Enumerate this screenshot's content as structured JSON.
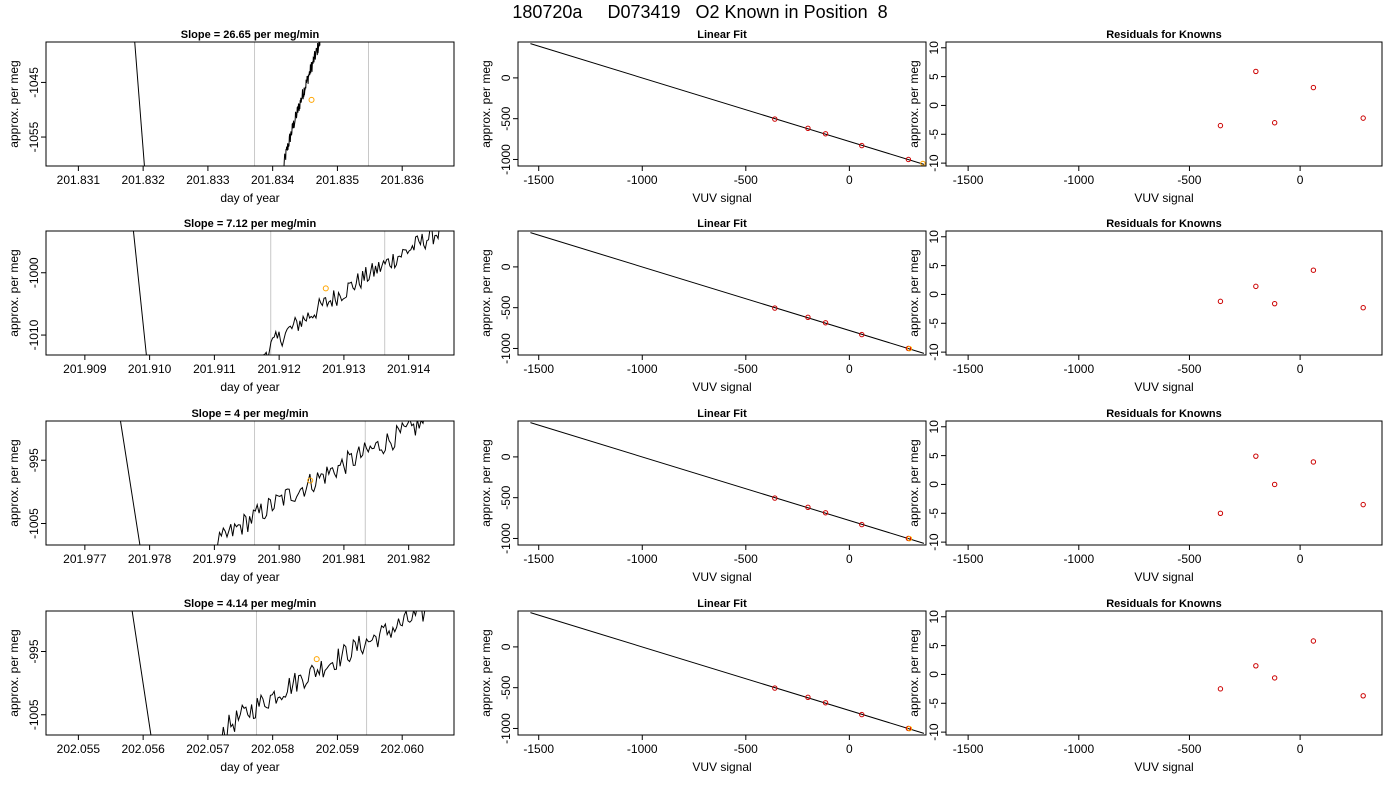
{
  "page": {
    "title": "180720a     D073419   O2 Known in Position  8"
  },
  "chart_data": [
    {
      "type": "line",
      "panel": "time",
      "title": "Slope =  26.65  per meg/min",
      "xlabel": "day of year",
      "ylabel": "approx. per meg",
      "xlim": [
        201.8305,
        201.8368
      ],
      "ylim": [
        -1060.3,
        -1037.6
      ],
      "xticks": [
        201.831,
        201.832,
        201.833,
        201.834,
        201.835,
        201.836
      ],
      "xtick_labels": [
        "201.831",
        "201.832",
        "201.833",
        "201.834",
        "201.835",
        "201.836"
      ],
      "yticks": [
        -1045,
        -1055
      ],
      "ytick_labels": [
        "-1045",
        "-1055"
      ],
      "vlines": [
        201.83372,
        201.83548
      ],
      "descent": [
        [
          201.83187,
          -1037.6
        ],
        [
          201.83202,
          -1060.3
        ]
      ],
      "rise_start": 201.83417,
      "rise_end": 201.83473,
      "rise_y0": -1060.3,
      "rise_y1": -1037.6,
      "noise": 1.2,
      "marker": {
        "x": 201.8346,
        "y": -1048.2,
        "color": "#ffa500"
      }
    },
    {
      "type": "line",
      "panel": "fit",
      "title": "Linear Fit",
      "xlabel": "VUV signal",
      "ylabel": "approx. per meg",
      "xlim": [
        -1600,
        370
      ],
      "ylim": [
        -1080,
        440
      ],
      "xticks": [
        -1500,
        -1000,
        -500,
        0
      ],
      "xtick_labels": [
        "-1500",
        "-1000",
        "-500",
        "0"
      ],
      "yticks": [
        0,
        -500,
        -1000
      ],
      "ytick_labels": [
        "0",
        "-500",
        "-1000"
      ],
      "line": [
        [
          -1540,
          420
        ],
        [
          360,
          -1060
        ]
      ],
      "points": [
        {
          "x": -360,
          "y": -505
        },
        {
          "x": -200,
          "y": -618
        },
        {
          "x": -115,
          "y": -685
        },
        {
          "x": 60,
          "y": -830
        },
        {
          "x": 285,
          "y": -1000
        }
      ],
      "point_color": "#cc0000",
      "extra": [
        {
          "x": 355,
          "y": -1048,
          "color": "#ffa500"
        }
      ]
    },
    {
      "type": "scatter",
      "panel": "resid",
      "title": "Residuals for Knowns",
      "xlabel": "VUV signal",
      "ylabel": "approx. per meg",
      "xlim": [
        -1600,
        370
      ],
      "ylim": [
        -10.5,
        11
      ],
      "xticks": [
        -1500,
        -1000,
        -500,
        0
      ],
      "xtick_labels": [
        "-1500",
        "-1000",
        "-500",
        "0"
      ],
      "yticks": [
        10,
        5,
        0,
        -5,
        -10
      ],
      "ytick_labels": [
        "10",
        "5",
        "0",
        "-5",
        "-10"
      ],
      "points": [
        {
          "x": -360,
          "y": -3.5
        },
        {
          "x": -200,
          "y": 5.9
        },
        {
          "x": -115,
          "y": -3.0
        },
        {
          "x": 60,
          "y": 3.1
        },
        {
          "x": 285,
          "y": -2.2
        }
      ],
      "point_color": "#cc0000"
    },
    {
      "type": "line",
      "panel": "time",
      "title": "Slope =  7.12  per meg/min",
      "xlabel": "day of year",
      "ylabel": "approx. per meg",
      "xlim": [
        201.9084,
        201.9147
      ],
      "ylim": [
        -1013.2,
        -993.3
      ],
      "xticks": [
        201.909,
        201.91,
        201.911,
        201.912,
        201.913,
        201.914
      ],
      "xtick_labels": [
        "201.909",
        "201.910",
        "201.911",
        "201.912",
        "201.913",
        "201.914"
      ],
      "yticks": [
        -1000,
        -1010
      ],
      "ytick_labels": [
        "-1000",
        "-1010"
      ],
      "vlines": [
        201.91187,
        201.91363
      ],
      "descent": [
        [
          201.90975,
          -993.3
        ],
        [
          201.90995,
          -1013.2
        ]
      ],
      "rise_start": 201.91175,
      "rise_end": 201.91448,
      "rise_y0": -1013.2,
      "rise_y1": -993.3,
      "noise": 1.6,
      "marker": {
        "x": 201.91272,
        "y": -1002.5,
        "color": "#ffa500"
      }
    },
    {
      "type": "line",
      "panel": "fit",
      "title": "Linear Fit",
      "xlabel": "VUV signal",
      "ylabel": "approx. per meg",
      "xlim": [
        -1600,
        370
      ],
      "ylim": [
        -1080,
        440
      ],
      "xticks": [
        -1500,
        -1000,
        -500,
        0
      ],
      "xtick_labels": [
        "-1500",
        "-1000",
        "-500",
        "0"
      ],
      "yticks": [
        0,
        -500,
        -1000
      ],
      "ytick_labels": [
        "0",
        "-500",
        "-1000"
      ],
      "line": [
        [
          -1540,
          420
        ],
        [
          360,
          -1060
        ]
      ],
      "points": [
        {
          "x": -360,
          "y": -505
        },
        {
          "x": -200,
          "y": -618
        },
        {
          "x": -115,
          "y": -685
        },
        {
          "x": 60,
          "y": -830
        },
        {
          "x": 285,
          "y": -1000
        }
      ],
      "point_color": "#cc0000",
      "extra": [
        {
          "x": 290,
          "y": -1002,
          "color": "#ffa500"
        }
      ]
    },
    {
      "type": "scatter",
      "panel": "resid",
      "title": "Residuals for Knowns",
      "xlabel": "VUV signal",
      "ylabel": "approx. per meg",
      "xlim": [
        -1600,
        370
      ],
      "ylim": [
        -10.5,
        11
      ],
      "xticks": [
        -1500,
        -1000,
        -500,
        0
      ],
      "xtick_labels": [
        "-1500",
        "-1000",
        "-500",
        "0"
      ],
      "yticks": [
        10,
        5,
        0,
        -5,
        -10
      ],
      "ytick_labels": [
        "10",
        "5",
        "0",
        "-5",
        "-10"
      ],
      "points": [
        {
          "x": -360,
          "y": -1.2
        },
        {
          "x": -200,
          "y": 1.4
        },
        {
          "x": -115,
          "y": -1.6
        },
        {
          "x": 60,
          "y": 4.2
        },
        {
          "x": 285,
          "y": -2.3
        }
      ],
      "point_color": "#cc0000"
    },
    {
      "type": "line",
      "panel": "time",
      "title": "Slope =  4  per meg/min",
      "xlabel": "day of year",
      "ylabel": "approx. per meg",
      "xlim": [
        201.9764,
        201.9827
      ],
      "ylim": [
        -1008.4,
        -988.8
      ],
      "xticks": [
        201.977,
        201.978,
        201.979,
        201.98,
        201.981,
        201.982
      ],
      "xtick_labels": [
        "201.977",
        "201.978",
        "201.979",
        "201.980",
        "201.981",
        "201.982"
      ],
      "yticks": [
        -995,
        -1005
      ],
      "ytick_labels": [
        "-995",
        "-1005"
      ],
      "vlines": [
        201.97962,
        201.98133
      ],
      "descent": [
        [
          201.97755,
          -988.8
        ],
        [
          201.97785,
          -1008.4
        ]
      ],
      "rise_start": 201.97905,
      "rise_end": 201.98225,
      "rise_y0": -1008.4,
      "rise_y1": -989.0,
      "noise": 1.8,
      "marker": {
        "x": 201.98048,
        "y": -998.2,
        "color": "#ffa500"
      }
    },
    {
      "type": "line",
      "panel": "fit",
      "title": "Linear Fit",
      "xlabel": "VUV signal",
      "ylabel": "approx. per meg",
      "xlim": [
        -1600,
        370
      ],
      "ylim": [
        -1080,
        440
      ],
      "xticks": [
        -1500,
        -1000,
        -500,
        0
      ],
      "xtick_labels": [
        "-1500",
        "-1000",
        "-500",
        "0"
      ],
      "yticks": [
        0,
        -500,
        -1000
      ],
      "ytick_labels": [
        "0",
        "-500",
        "-1000"
      ],
      "line": [
        [
          -1540,
          420
        ],
        [
          360,
          -1060
        ]
      ],
      "points": [
        {
          "x": -360,
          "y": -505
        },
        {
          "x": -200,
          "y": -618
        },
        {
          "x": -115,
          "y": -685
        },
        {
          "x": 60,
          "y": -830
        },
        {
          "x": 285,
          "y": -1000
        }
      ],
      "point_color": "#cc0000",
      "extra": [
        {
          "x": 290,
          "y": -1002,
          "color": "#ffa500"
        }
      ]
    },
    {
      "type": "scatter",
      "panel": "resid",
      "title": "Residuals for Knowns",
      "xlabel": "VUV signal",
      "ylabel": "approx. per meg",
      "xlim": [
        -1600,
        370
      ],
      "ylim": [
        -10.5,
        11
      ],
      "xticks": [
        -1500,
        -1000,
        -500,
        0
      ],
      "xtick_labels": [
        "-1500",
        "-1000",
        "-500",
        "0"
      ],
      "yticks": [
        10,
        5,
        0,
        -5,
        -10
      ],
      "ytick_labels": [
        "10",
        "5",
        "0",
        "-5",
        "-10"
      ],
      "points": [
        {
          "x": -360,
          "y": -5.0
        },
        {
          "x": -200,
          "y": 4.9
        },
        {
          "x": -115,
          "y": 0.0
        },
        {
          "x": 60,
          "y": 3.9
        },
        {
          "x": 285,
          "y": -3.5
        }
      ],
      "point_color": "#cc0000"
    },
    {
      "type": "line",
      "panel": "time",
      "title": "Slope =  4.14  per meg/min",
      "xlabel": "day of year",
      "ylabel": "approx. per meg",
      "xlim": [
        202.0545,
        202.0608
      ],
      "ylim": [
        -1008.2,
        -988.6
      ],
      "xticks": [
        202.055,
        202.056,
        202.057,
        202.058,
        202.059,
        202.06
      ],
      "xtick_labels": [
        "202.055",
        "202.056",
        "202.057",
        "202.058",
        "202.059",
        "202.060"
      ],
      "yticks": [
        -995,
        -1005
      ],
      "ytick_labels": [
        "-995",
        "-1005"
      ],
      "vlines": [
        202.05775,
        202.05945
      ],
      "descent": [
        [
          202.05583,
          -988.6
        ],
        [
          202.05612,
          -1008.2
        ]
      ],
      "rise_start": 202.05718,
      "rise_end": 202.06038,
      "rise_y0": -1008.2,
      "rise_y1": -988.6,
      "noise": 1.8,
      "marker": {
        "x": 202.05868,
        "y": -996.2,
        "color": "#ffa500"
      }
    },
    {
      "type": "line",
      "panel": "fit",
      "title": "Linear Fit",
      "xlabel": "VUV signal",
      "ylabel": "approx. per meg",
      "xlim": [
        -1600,
        370
      ],
      "ylim": [
        -1080,
        440
      ],
      "xticks": [
        -1500,
        -1000,
        -500,
        0
      ],
      "xtick_labels": [
        "-1500",
        "-1000",
        "-500",
        "0"
      ],
      "yticks": [
        0,
        -500,
        -1000
      ],
      "ytick_labels": [
        "0",
        "-500",
        "-1000"
      ],
      "line": [
        [
          -1540,
          420
        ],
        [
          360,
          -1060
        ]
      ],
      "points": [
        {
          "x": -360,
          "y": -505
        },
        {
          "x": -200,
          "y": -618
        },
        {
          "x": -115,
          "y": -685
        },
        {
          "x": 60,
          "y": -830
        },
        {
          "x": 285,
          "y": -1000
        }
      ],
      "point_color": "#cc0000",
      "extra": [
        {
          "x": 290,
          "y": -1002,
          "color": "#ffa500"
        }
      ]
    },
    {
      "type": "scatter",
      "panel": "resid",
      "title": "Residuals for Knowns",
      "xlabel": "VUV signal",
      "ylabel": "approx. per meg",
      "xlim": [
        -1600,
        370
      ],
      "ylim": [
        -10.5,
        11
      ],
      "xticks": [
        -1500,
        -1000,
        -500,
        0
      ],
      "xtick_labels": [
        "-1500",
        "-1000",
        "-500",
        "0"
      ],
      "yticks": [
        10,
        5,
        0,
        -5,
        -10
      ],
      "ytick_labels": [
        "10",
        "5",
        "0",
        "-5",
        "-10"
      ],
      "points": [
        {
          "x": -360,
          "y": -2.5
        },
        {
          "x": -200,
          "y": 1.5
        },
        {
          "x": -115,
          "y": -0.6
        },
        {
          "x": 60,
          "y": 5.8
        },
        {
          "x": 285,
          "y": -3.7
        }
      ],
      "point_color": "#cc0000"
    }
  ]
}
